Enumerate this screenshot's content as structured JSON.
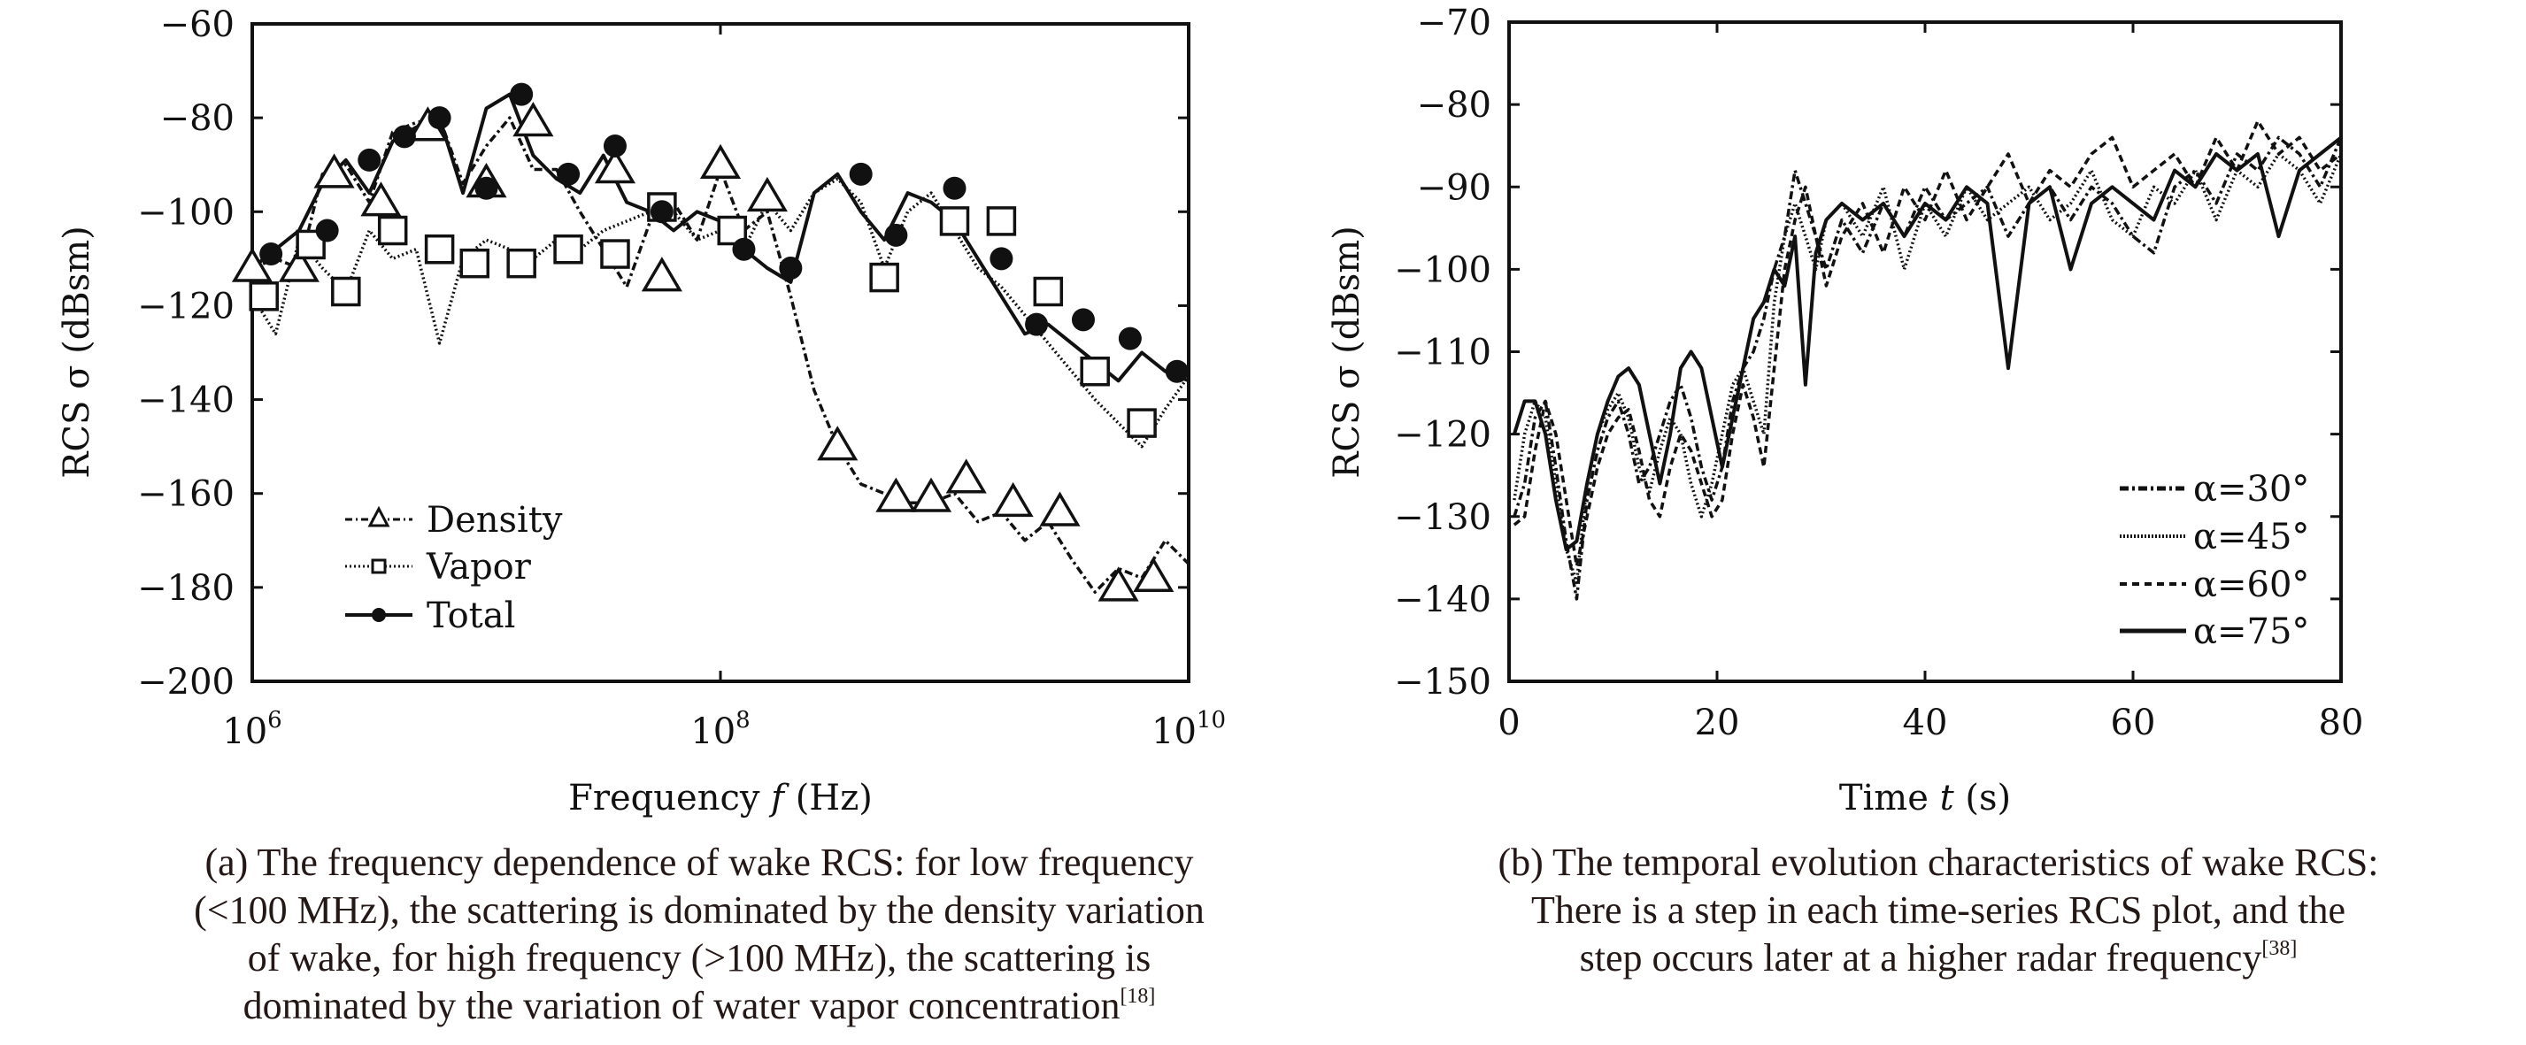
{
  "chart_data": [
    {
      "id": "a",
      "type": "line",
      "title": "",
      "xlabel": "Frequency f (Hz)",
      "ylabel": "RCS σ (dBsm)",
      "xscale": "log",
      "xlim_log10": [
        6,
        10
      ],
      "ylim": [
        -200,
        -60
      ],
      "xticks": [
        {
          "log10": 6,
          "base": "10",
          "exp": "6"
        },
        {
          "log10": 8,
          "base": "10",
          "exp": "8"
        },
        {
          "log10": 10,
          "base": "10",
          "exp": "10"
        }
      ],
      "yticks": [
        -60,
        -80,
        -100,
        -120,
        -140,
        -160,
        -180,
        -200
      ],
      "grid": false,
      "legend_position": "bottom-left",
      "series": [
        {
          "name": "Density",
          "line_style": "dash-dot",
          "marker": "triangle",
          "x_log10": [
            6.0,
            6.1,
            6.2,
            6.3,
            6.4,
            6.5,
            6.6,
            6.7,
            6.8,
            6.9,
            7.0,
            7.1,
            7.2,
            7.3,
            7.4,
            7.5,
            7.6,
            7.7,
            7.8,
            7.9,
            8.0,
            8.1,
            8.2,
            8.3,
            8.4,
            8.5,
            8.6,
            8.7,
            8.8,
            8.9,
            9.0,
            9.1,
            9.2,
            9.3,
            9.4,
            9.5,
            9.6,
            9.7,
            9.8,
            9.9,
            10.0
          ],
          "y": [
            -112,
            -110,
            -112,
            -92,
            -90,
            -98,
            -83,
            -81,
            -80,
            -94,
            -86,
            -80,
            -91,
            -91,
            -100,
            -108,
            -116,
            -102,
            -98,
            -106,
            -91,
            -104,
            -100,
            -118,
            -138,
            -150,
            -158,
            -160,
            -162,
            -162,
            -160,
            -166,
            -164,
            -170,
            -166,
            -174,
            -181,
            -176,
            -178,
            -170,
            -175
          ],
          "markers_log10": [
            6.0,
            6.2,
            6.35,
            6.55,
            6.75,
            7.0,
            7.2,
            7.55,
            7.75,
            8.0,
            8.2,
            8.5,
            8.75,
            8.9,
            9.05,
            9.25,
            9.45,
            9.7,
            9.85
          ],
          "markers_y": [
            -112,
            -112,
            -92,
            -98,
            -82,
            -94,
            -81,
            -91,
            -114,
            -90,
            -97,
            -150,
            -161,
            -161,
            -157,
            -162,
            -164,
            -180,
            -178
          ]
        },
        {
          "name": "Vapor",
          "line_style": "dotted",
          "marker": "square",
          "x_log10": [
            6.0,
            6.1,
            6.2,
            6.3,
            6.4,
            6.5,
            6.6,
            6.7,
            6.8,
            6.9,
            7.0,
            7.1,
            7.2,
            7.3,
            7.4,
            7.5,
            7.6,
            7.7,
            7.8,
            7.9,
            8.0,
            8.1,
            8.2,
            8.3,
            8.4,
            8.5,
            8.6,
            8.7,
            8.8,
            8.9,
            9.0,
            9.1,
            9.2,
            9.3,
            9.4,
            9.5,
            9.6,
            9.7,
            9.8,
            9.9,
            10.0
          ],
          "y": [
            -118,
            -126,
            -106,
            -112,
            -117,
            -104,
            -110,
            -108,
            -128,
            -110,
            -106,
            -108,
            -110,
            -106,
            -108,
            -104,
            -102,
            -100,
            -100,
            -106,
            -104,
            -108,
            -98,
            -104,
            -96,
            -93,
            -98,
            -112,
            -100,
            -96,
            -104,
            -112,
            -116,
            -122,
            -128,
            -134,
            -140,
            -145,
            -150,
            -142,
            -135
          ],
          "markers_log10": [
            6.05,
            6.25,
            6.4,
            6.6,
            6.8,
            6.95,
            7.15,
            7.35,
            7.55,
            7.75,
            8.05,
            8.7,
            9.0,
            9.2,
            9.4,
            9.6,
            9.8
          ],
          "markers_y": [
            -118,
            -107,
            -117,
            -104,
            -108,
            -111,
            -111,
            -108,
            -109,
            -99,
            -104,
            -114,
            -102,
            -102,
            -117,
            -134,
            -145
          ]
        },
        {
          "name": "Total",
          "line_style": "solid",
          "marker": "circle",
          "x_log10": [
            6.0,
            6.1,
            6.2,
            6.3,
            6.4,
            6.5,
            6.6,
            6.7,
            6.8,
            6.9,
            7.0,
            7.1,
            7.2,
            7.3,
            7.4,
            7.5,
            7.6,
            7.7,
            7.8,
            7.9,
            8.0,
            8.1,
            8.2,
            8.3,
            8.4,
            8.5,
            8.6,
            8.7,
            8.8,
            8.9,
            9.0,
            9.1,
            9.2,
            9.3,
            9.4,
            9.5,
            9.6,
            9.7,
            9.8,
            9.9,
            10.0
          ],
          "y": [
            -112,
            -108,
            -104,
            -94,
            -89,
            -96,
            -85,
            -82,
            -80,
            -96,
            -78,
            -75,
            -88,
            -93,
            -96,
            -88,
            -98,
            -100,
            -104,
            -100,
            -102,
            -108,
            -112,
            -115,
            -96,
            -92,
            -100,
            -106,
            -96,
            -98,
            -102,
            -110,
            -118,
            -126,
            -124,
            -128,
            -132,
            -136,
            -130,
            -134,
            -136
          ],
          "markers_log10": [
            6.08,
            6.32,
            6.5,
            6.65,
            6.8,
            7.0,
            7.15,
            7.35,
            7.55,
            7.75,
            8.1,
            8.3,
            8.6,
            8.75,
            9.0,
            9.2,
            9.35,
            9.55,
            9.75,
            9.95
          ],
          "markers_y": [
            -109,
            -104,
            -89,
            -84,
            -80,
            -95,
            -75,
            -92,
            -86,
            -100,
            -108,
            -112,
            -92,
            -105,
            -95,
            -110,
            -124,
            -123,
            -127,
            -134
          ]
        }
      ]
    },
    {
      "id": "b",
      "type": "line",
      "title": "",
      "xlabel": "Time t (s)",
      "ylabel": "RCS σ (dBsm)",
      "xlim": [
        0,
        80
      ],
      "ylim": [
        -150,
        -70
      ],
      "xticks": [
        0,
        20,
        40,
        60,
        80
      ],
      "yticks": [
        -70,
        -80,
        -90,
        -100,
        -110,
        -120,
        -130,
        -140,
        -150
      ],
      "grid": false,
      "legend_position": "bottom-right",
      "series": [
        {
          "name": "α=30°",
          "line_style": "dash-dot",
          "x": [
            0.5,
            1.5,
            2.5,
            3.5,
            4.5,
            5.5,
            6.5,
            7.5,
            8.5,
            9.5,
            10.5,
            11.5,
            12.5,
            13.5,
            14.5,
            15.5,
            16.5,
            17.5,
            18.5,
            19.5,
            20.5,
            21.5,
            22.5,
            23.5,
            24.5,
            25.5,
            26.5,
            27.5,
            28.5,
            29.5,
            30.5,
            32,
            34,
            36,
            38,
            40,
            42,
            44,
            46,
            48,
            50,
            52,
            54,
            56,
            58,
            60,
            62,
            64,
            66,
            68,
            70,
            72,
            74,
            76,
            78,
            80
          ],
          "y": [
            -130,
            -126,
            -118,
            -116,
            -124,
            -133,
            -140,
            -128,
            -122,
            -118,
            -116,
            -120,
            -126,
            -124,
            -120,
            -116,
            -114,
            -118,
            -124,
            -128,
            -124,
            -116,
            -112,
            -110,
            -106,
            -100,
            -96,
            -88,
            -92,
            -96,
            -100,
            -94,
            -98,
            -92,
            -96,
            -90,
            -94,
            -92,
            -90,
            -96,
            -92,
            -90,
            -94,
            -90,
            -92,
            -96,
            -98,
            -90,
            -88,
            -92,
            -86,
            -88,
            -84,
            -86,
            -90,
            -84
          ]
        },
        {
          "name": "α=45°",
          "line_style": "dotted",
          "x": [
            0.5,
            1.5,
            2.5,
            3.5,
            4.5,
            5.5,
            6.5,
            7.5,
            8.5,
            9.5,
            10.5,
            11.5,
            12.5,
            13.5,
            14.5,
            15.5,
            16.5,
            17.5,
            18.5,
            19.5,
            20.5,
            21.5,
            22.5,
            23.5,
            24.5,
            25.5,
            26.5,
            27.5,
            28.5,
            29.5,
            30.5,
            32,
            34,
            36,
            38,
            40,
            42,
            44,
            46,
            48,
            50,
            52,
            54,
            56,
            58,
            60,
            62,
            64,
            66,
            68,
            70,
            72,
            74,
            76,
            78,
            80
          ],
          "y": [
            -128,
            -120,
            -116,
            -118,
            -126,
            -134,
            -138,
            -126,
            -120,
            -117,
            -115,
            -118,
            -124,
            -127,
            -122,
            -118,
            -120,
            -126,
            -130,
            -126,
            -120,
            -114,
            -112,
            -116,
            -120,
            -104,
            -96,
            -92,
            -96,
            -100,
            -94,
            -92,
            -96,
            -90,
            -100,
            -92,
            -96,
            -90,
            -94,
            -92,
            -90,
            -94,
            -92,
            -88,
            -94,
            -96,
            -90,
            -92,
            -88,
            -94,
            -88,
            -90,
            -86,
            -88,
            -92,
            -86
          ]
        },
        {
          "name": "α=60°",
          "line_style": "dashed",
          "x": [
            0.5,
            1.5,
            2.5,
            3.5,
            4.5,
            5.5,
            6.5,
            7.5,
            8.5,
            9.5,
            10.5,
            11.5,
            12.5,
            13.5,
            14.5,
            15.5,
            16.5,
            17.5,
            18.5,
            19.5,
            20.5,
            21.5,
            22.5,
            23.5,
            24.5,
            25.5,
            26.5,
            27.5,
            28.5,
            29.5,
            30.5,
            32,
            34,
            36,
            38,
            40,
            42,
            44,
            46,
            48,
            50,
            52,
            54,
            56,
            58,
            60,
            62,
            64,
            66,
            68,
            70,
            72,
            74,
            76,
            78,
            80
          ],
          "y": [
            -131,
            -130,
            -122,
            -116,
            -120,
            -128,
            -136,
            -130,
            -124,
            -120,
            -118,
            -117,
            -122,
            -128,
            -130,
            -124,
            -120,
            -122,
            -126,
            -130,
            -128,
            -120,
            -114,
            -118,
            -124,
            -112,
            -100,
            -94,
            -90,
            -96,
            -102,
            -96,
            -92,
            -98,
            -90,
            -94,
            -88,
            -94,
            -90,
            -86,
            -92,
            -88,
            -90,
            -86,
            -84,
            -90,
            -88,
            -86,
            -90,
            -84,
            -88,
            -82,
            -86,
            -84,
            -88,
            -86
          ]
        },
        {
          "name": "α=75°",
          "line_style": "solid",
          "x": [
            0.5,
            1.5,
            2.5,
            3.5,
            4.5,
            5.5,
            6.5,
            7.5,
            8.5,
            9.5,
            10.5,
            11.5,
            12.5,
            13.5,
            14.5,
            15.5,
            16.5,
            17.5,
            18.5,
            19.5,
            20.5,
            21.5,
            22.5,
            23.5,
            24.5,
            25.5,
            26.5,
            27.5,
            28.5,
            29.5,
            30.5,
            32,
            34,
            36,
            38,
            40,
            42,
            44,
            46,
            48,
            50,
            52,
            54,
            56,
            58,
            60,
            62,
            64,
            66,
            68,
            70,
            72,
            74,
            76,
            78,
            80
          ],
          "y": [
            -120,
            -116,
            -116,
            -120,
            -128,
            -134,
            -133,
            -126,
            -120,
            -116,
            -113,
            -112,
            -114,
            -120,
            -126,
            -120,
            -112,
            -110,
            -112,
            -118,
            -124,
            -118,
            -112,
            -106,
            -104,
            -100,
            -102,
            -96,
            -114,
            -98,
            -94,
            -92,
            -94,
            -92,
            -96,
            -92,
            -94,
            -90,
            -92,
            -112,
            -92,
            -90,
            -100,
            -92,
            -90,
            -92,
            -94,
            -88,
            -90,
            -86,
            -88,
            -86,
            -96,
            -88,
            -86,
            -84
          ]
        }
      ]
    }
  ],
  "charts": {
    "a": {
      "ylabel": "RCS σ (dBsm)",
      "xlabel_prefix": "Frequency ",
      "xlabel_var": "f",
      "xlabel_suffix": " (Hz)",
      "legend": [
        "Density",
        "Vapor",
        "Total"
      ]
    },
    "b": {
      "ylabel": "RCS σ (dBsm)",
      "xlabel_prefix": "Time ",
      "xlabel_var": "t",
      "xlabel_suffix": " (s)",
      "legend": [
        "α=30°",
        "α=45°",
        "α=60°",
        "α=75°"
      ]
    }
  },
  "captions": {
    "a": {
      "lines": [
        "(a) The frequency dependence of wake RCS: for low frequency",
        "(<100 MHz), the scattering is dominated by the density variation",
        "of wake, for high frequency (>100 MHz), the scattering is",
        "dominated by the variation of water vapor concentration"
      ],
      "ref": "[18]"
    },
    "b": {
      "lines": [
        "(b) The temporal evolution characteristics of wake RCS:",
        "There is a step in each time-series RCS plot, and the",
        "step occurs later at a higher radar frequency"
      ],
      "ref": "[38]"
    }
  }
}
